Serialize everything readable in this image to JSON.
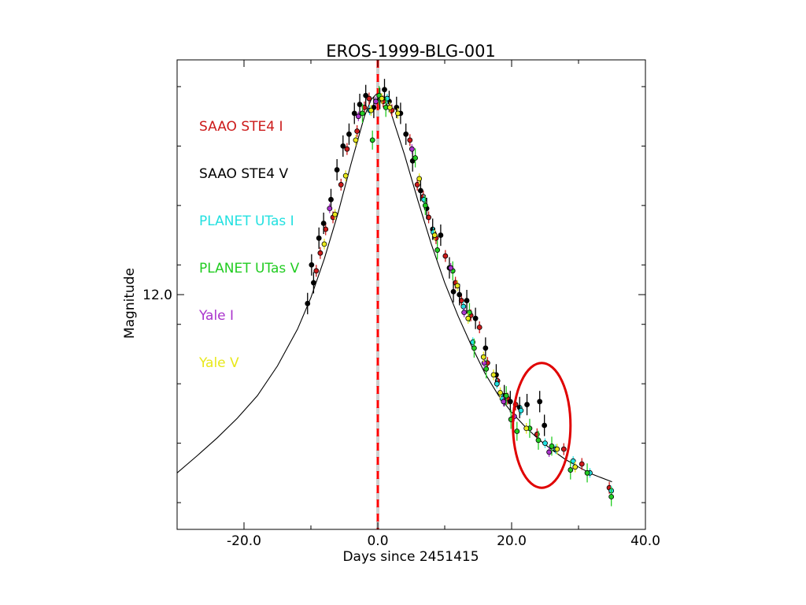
{
  "chart_data": {
    "type": "scatter",
    "title": "EROS-1999-BLG-001",
    "xlabel": "Days since 2451415",
    "ylabel": "Magnitude",
    "xlim": [
      -30,
      40
    ],
    "ylim": [
      15.95,
      8.05
    ],
    "y_inverted": true,
    "x_ticks": [
      -20,
      0,
      20,
      40
    ],
    "x_tick_labels": [
      "-20.0",
      "0.0",
      "20.0",
      "40.0"
    ],
    "y_ticks": [
      12.0
    ],
    "y_tick_labels": [
      "12.0"
    ],
    "grid": false,
    "legend": "left",
    "peak_line": {
      "x": 0,
      "color": "#ff0000",
      "style": "dashed"
    },
    "annotation": {
      "shape": "ellipse",
      "center": [
        24.5,
        14.2
      ],
      "radius": [
        4.3,
        1.05
      ],
      "color": "#e00000"
    },
    "model_curve": {
      "x": [
        -30,
        -27,
        -24,
        -21,
        -18,
        -15,
        -12,
        -10,
        -8,
        -6,
        -4,
        -2,
        -1,
        0,
        1,
        2,
        4,
        6,
        8,
        10,
        12,
        14,
        16,
        18,
        20,
        22,
        24,
        26,
        28,
        30,
        32,
        35
      ],
      "y": [
        15.0,
        14.71,
        14.41,
        14.08,
        13.7,
        13.2,
        12.58,
        12.05,
        11.4,
        10.65,
        9.8,
        9.0,
        8.72,
        8.6,
        8.72,
        8.95,
        9.65,
        10.42,
        11.15,
        11.8,
        12.36,
        12.86,
        13.32,
        13.69,
        13.98,
        14.22,
        14.43,
        14.61,
        14.77,
        14.9,
        15.02,
        15.15
      ],
      "color": "#000000"
    },
    "series": [
      {
        "name": "SAAO STE4 I",
        "color": "#cc1a1a",
        "x": [
          -9.2,
          -8.6,
          -7.8,
          -6.7,
          -5.5,
          -4.6,
          -3.1,
          -2.0,
          -1.3,
          0.8,
          2.1,
          4.8,
          5.9,
          6.8,
          7.6,
          8.7,
          10.1,
          11.6,
          12.5,
          13.9,
          15.2,
          16.4,
          17.9,
          19.4,
          20.6,
          23.8,
          27.8,
          30.5,
          34.6
        ],
        "y": [
          11.6,
          11.3,
          10.9,
          10.7,
          10.15,
          9.55,
          9.25,
          8.85,
          8.7,
          8.75,
          8.9,
          9.4,
          10.15,
          10.35,
          10.7,
          11.05,
          11.35,
          11.8,
          12.1,
          12.35,
          12.55,
          13.15,
          13.45,
          13.75,
          13.85,
          14.35,
          14.6,
          14.85,
          15.25
        ],
        "yerr": 0.1
      },
      {
        "name": "SAAO STE4 V",
        "color": "#000000",
        "x": [
          -10.5,
          -9.9,
          -9.6,
          -8.8,
          -8.1,
          -7.0,
          -6.1,
          -5.2,
          -4.3,
          -3.5,
          -2.7,
          -1.8,
          -0.6,
          0.3,
          1.0,
          1.7,
          2.8,
          3.4,
          4.2,
          5.2,
          6.4,
          7.3,
          8.2,
          9.4,
          10.7,
          11.3,
          12.2,
          13.3,
          14.6,
          16.1,
          17.7,
          18.9,
          19.8,
          21.2,
          22.3,
          24.2,
          24.9
        ],
        "y": [
          12.15,
          11.5,
          11.8,
          11.05,
          10.8,
          10.4,
          9.9,
          9.5,
          9.3,
          8.95,
          8.8,
          8.65,
          8.85,
          8.7,
          8.55,
          8.75,
          8.85,
          8.95,
          9.3,
          9.75,
          10.25,
          10.55,
          10.9,
          11.0,
          11.55,
          11.95,
          12.0,
          12.1,
          12.4,
          12.9,
          13.35,
          13.7,
          13.8,
          13.9,
          13.85,
          13.8,
          14.2
        ],
        "yerr": 0.18
      },
      {
        "name": "PLANET UTas I",
        "color": "#22e0e0",
        "x": [
          -1.2,
          1.4,
          6.9,
          8.3,
          12.8,
          14.2,
          17.8,
          18.6,
          21.4,
          25.0,
          26.6,
          29.2,
          31.7,
          34.9
        ],
        "y": [
          8.9,
          8.7,
          10.4,
          10.95,
          12.2,
          12.8,
          13.5,
          13.75,
          13.95,
          14.5,
          14.6,
          14.8,
          15.0,
          15.3
        ],
        "yerr": 0.08
      },
      {
        "name": "PLANET UTas V",
        "color": "#22cc22",
        "x": [
          -2.3,
          -0.8,
          0.2,
          1.2,
          5.6,
          7.1,
          8.9,
          11.2,
          13.7,
          14.4,
          16.2,
          19.2,
          19.9,
          20.8,
          22.7,
          24.0,
          26.0,
          28.8,
          31.3,
          34.9
        ],
        "y": [
          8.95,
          9.4,
          8.65,
          8.85,
          9.7,
          10.5,
          11.25,
          11.6,
          12.3,
          12.9,
          13.25,
          13.7,
          14.1,
          14.3,
          14.25,
          14.45,
          14.55,
          14.95,
          15.0,
          15.4
        ],
        "yerr": 0.16
      },
      {
        "name": "Yale I",
        "color": "#aa33cc",
        "x": [
          -7.2,
          -2.9,
          -0.3,
          5.1,
          10.9,
          12.9,
          15.9,
          18.8,
          20.4,
          25.6
        ],
        "y": [
          10.55,
          9.0,
          8.75,
          9.55,
          11.55,
          12.3,
          13.15,
          13.8,
          14.05,
          14.65
        ],
        "yerr": 0.08
      },
      {
        "name": "Yale V",
        "color": "#e8e81a",
        "x": [
          -8.0,
          -6.4,
          -4.8,
          -3.3,
          -1.0,
          0.6,
          1.8,
          3.0,
          6.2,
          8.5,
          11.9,
          13.5,
          15.8,
          17.3,
          18.3,
          22.2,
          26.8,
          29.5
        ],
        "y": [
          11.15,
          10.65,
          10.0,
          9.4,
          8.9,
          8.7,
          8.85,
          8.95,
          10.05,
          11.0,
          11.85,
          12.4,
          13.05,
          13.35,
          13.65,
          14.25,
          14.6,
          14.9
        ],
        "yerr": 0.09
      }
    ]
  }
}
